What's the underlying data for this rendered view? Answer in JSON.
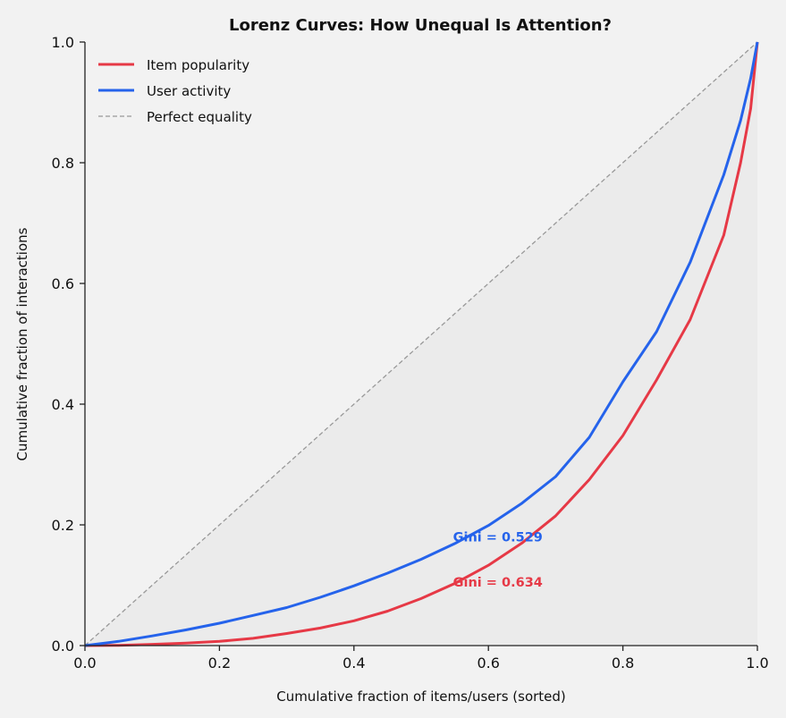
{
  "chart_data": {
    "type": "line",
    "title": "Lorenz Curves: How Unequal Is Attention?",
    "xlabel": "Cumulative fraction of items/users (sorted)",
    "ylabel": "Cumulative fraction of interactions",
    "xlim": [
      0,
      1
    ],
    "ylim": [
      0,
      1
    ],
    "xticks": [
      "0.0",
      "0.2",
      "0.4",
      "0.6",
      "0.8",
      "1.0"
    ],
    "yticks": [
      "0.0",
      "0.2",
      "0.4",
      "0.6",
      "0.8",
      "1.0"
    ],
    "grid": false,
    "legend_position": "top-left",
    "series": [
      {
        "name": "Item popularity",
        "color": "#e63946",
        "x": [
          0,
          0.05,
          0.1,
          0.15,
          0.2,
          0.25,
          0.3,
          0.35,
          0.4,
          0.45,
          0.5,
          0.55,
          0.6,
          0.65,
          0.7,
          0.75,
          0.8,
          0.85,
          0.9,
          0.95,
          0.975,
          0.99,
          1
        ],
        "y": [
          0,
          0.0005,
          0.002,
          0.004,
          0.007,
          0.012,
          0.02,
          0.029,
          0.041,
          0.057,
          0.078,
          0.103,
          0.133,
          0.17,
          0.215,
          0.275,
          0.348,
          0.44,
          0.54,
          0.68,
          0.8,
          0.89,
          1
        ]
      },
      {
        "name": "User activity",
        "color": "#2563eb",
        "x": [
          0,
          0.05,
          0.1,
          0.15,
          0.2,
          0.25,
          0.3,
          0.35,
          0.4,
          0.45,
          0.5,
          0.55,
          0.6,
          0.65,
          0.7,
          0.75,
          0.8,
          0.85,
          0.9,
          0.95,
          0.975,
          0.99,
          1
        ],
        "y": [
          0,
          0.007,
          0.016,
          0.026,
          0.037,
          0.05,
          0.063,
          0.08,
          0.099,
          0.12,
          0.143,
          0.169,
          0.199,
          0.236,
          0.28,
          0.345,
          0.437,
          0.52,
          0.635,
          0.78,
          0.87,
          0.94,
          1
        ]
      },
      {
        "name": "Perfect equality",
        "color": "#999999",
        "dashed": true,
        "x": [
          0,
          1
        ],
        "y": [
          0,
          1
        ]
      }
    ],
    "annotations": [
      {
        "text": "Gini = 0.529",
        "x": 0.55,
        "y": 0.18,
        "color": "#2563eb"
      },
      {
        "text": "Gini = 0.634",
        "x": 0.55,
        "y": 0.105,
        "color": "#e63946"
      }
    ],
    "shaded_region": "area under perfect-equality line",
    "background": "#f2f2f2",
    "shade_color": "#ebebeb"
  }
}
